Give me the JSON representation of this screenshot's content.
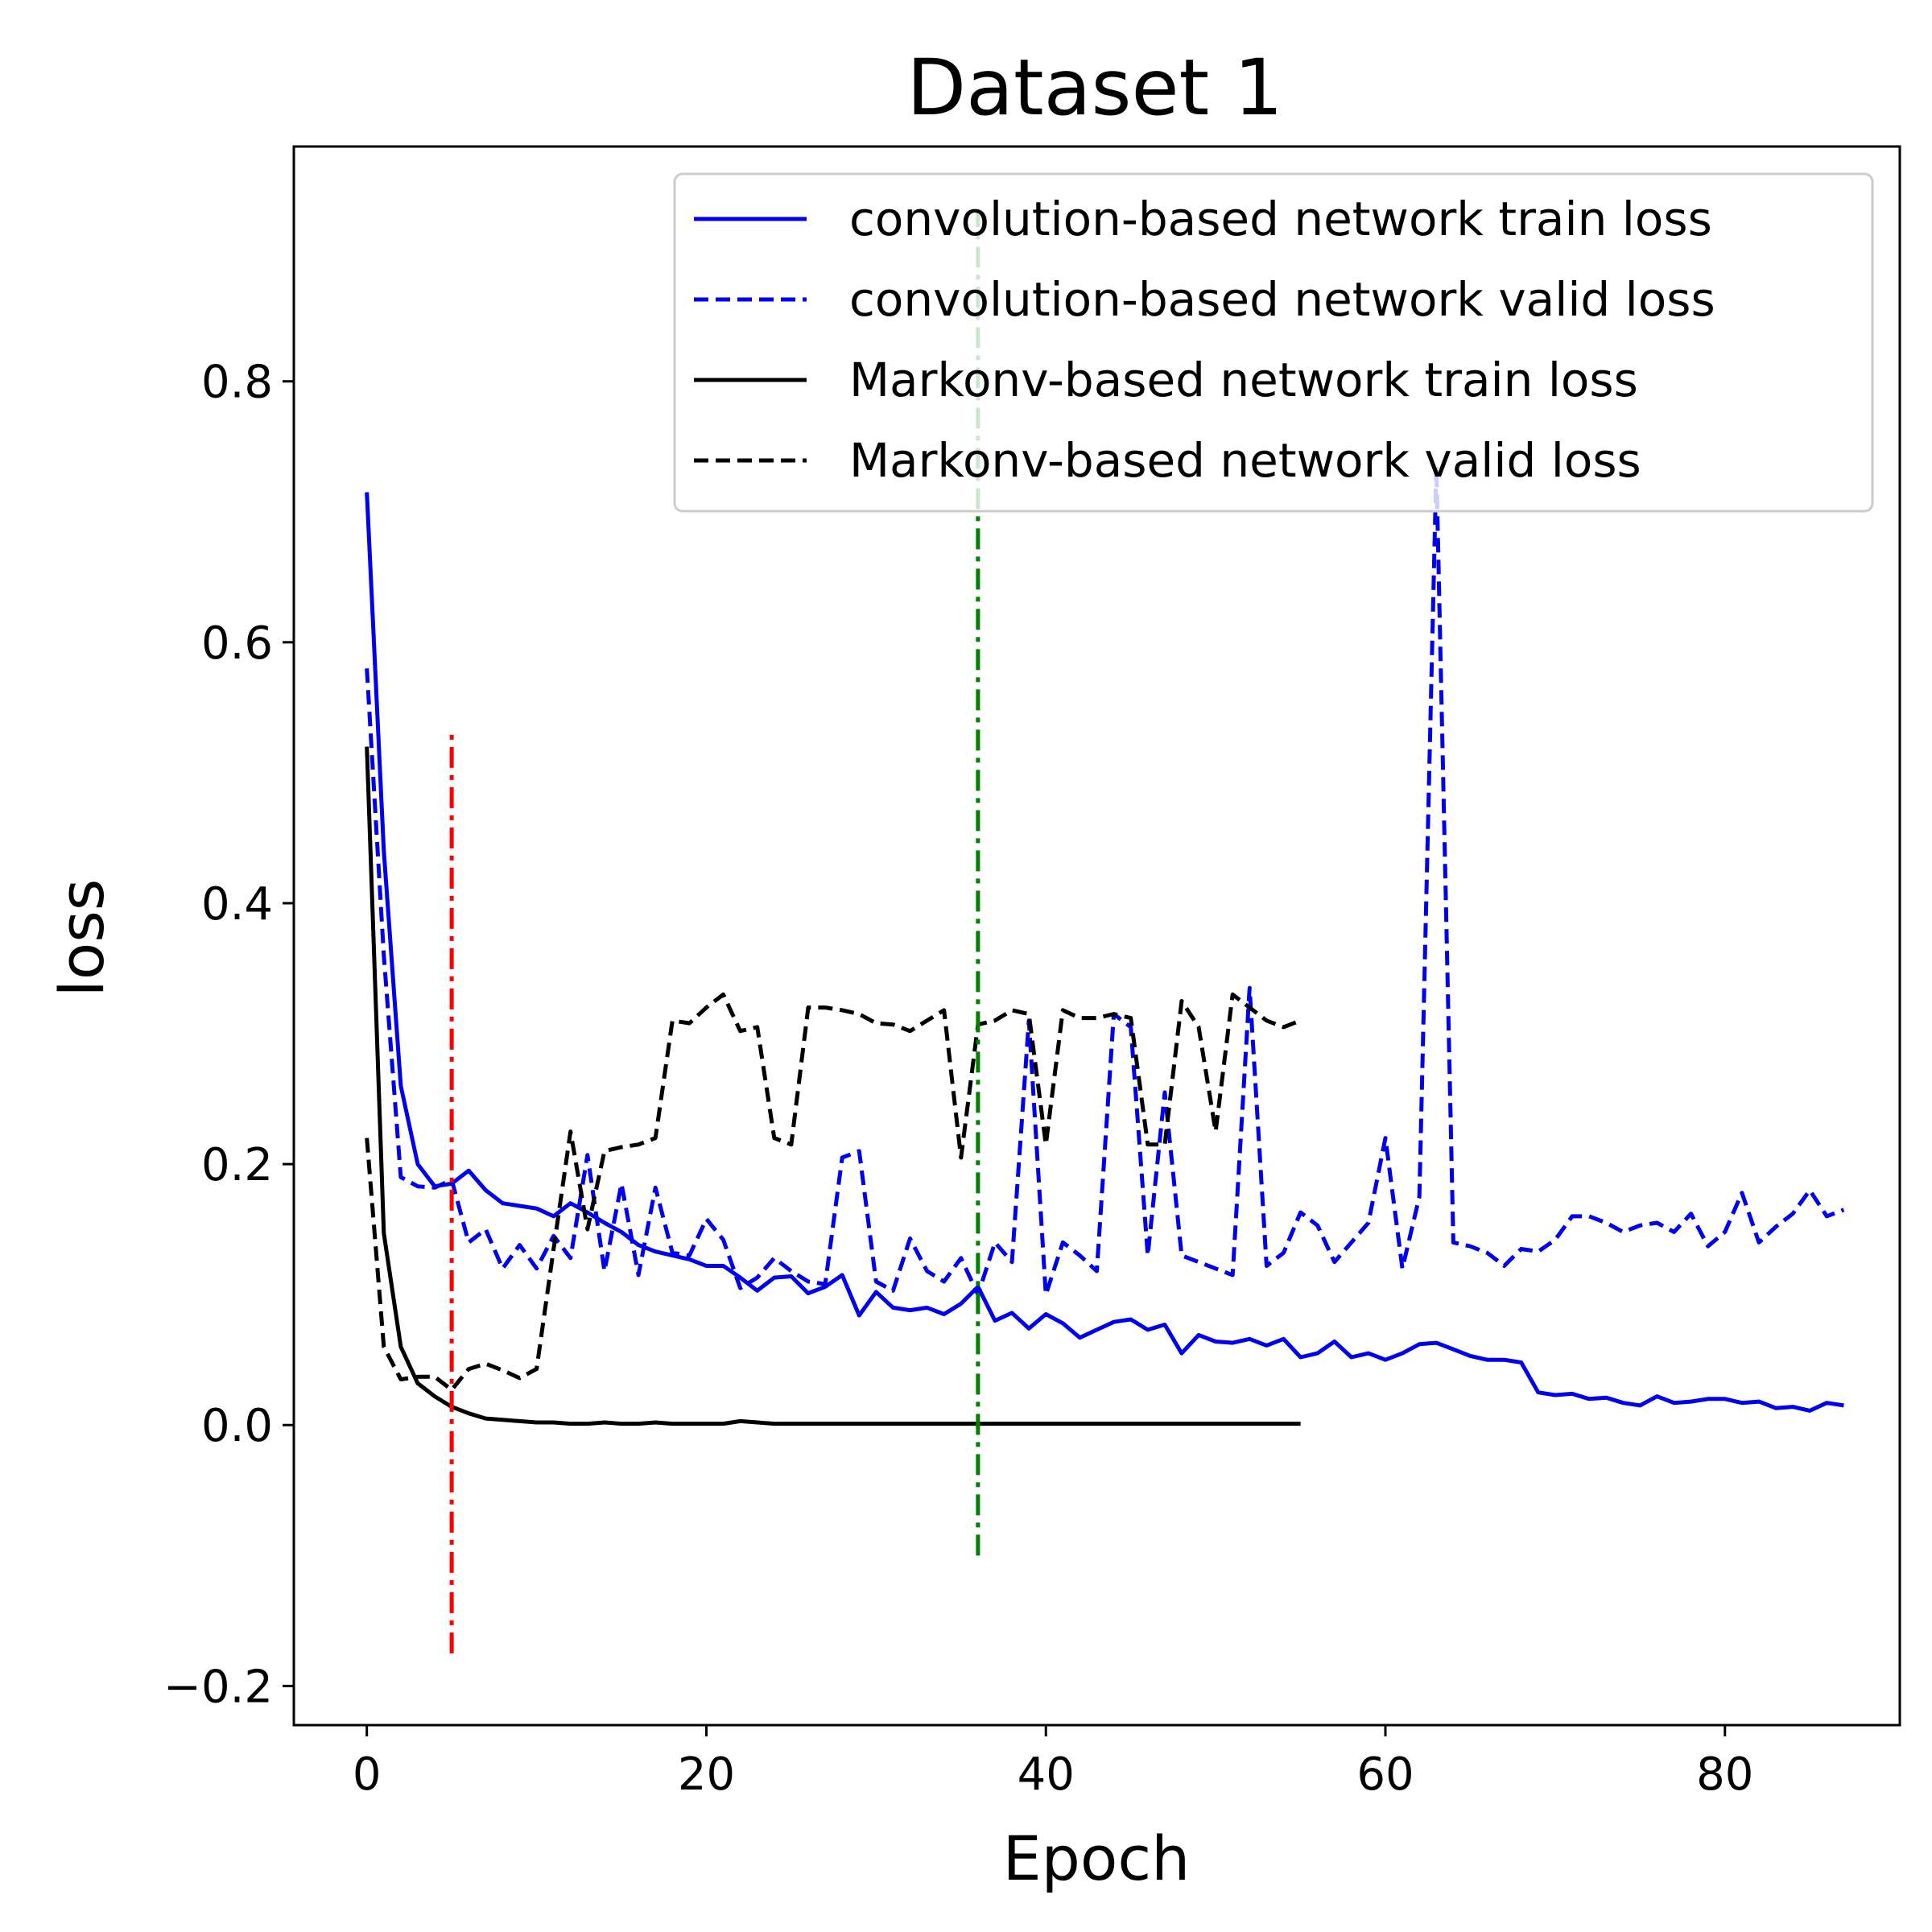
{
  "chart_data": {
    "type": "line",
    "title": "Dataset 1",
    "xlabel": "Epoch",
    "ylabel": "loss",
    "xlim": [
      -4.3,
      90.3
    ],
    "ylim": [
      -0.23,
      0.98
    ],
    "xticks": [
      0,
      20,
      40,
      60,
      80
    ],
    "yticks": [
      -0.2,
      0.0,
      0.2,
      0.4,
      0.6,
      0.8
    ],
    "ytick_labels": [
      "−0.2",
      "0.0",
      "0.2",
      "0.4",
      "0.6",
      "0.8"
    ],
    "grid": false,
    "legend_position": "top-right",
    "series": [
      {
        "name": "convolution-based network train loss",
        "color": "#0000ee",
        "style": "solid",
        "x_start": 0,
        "values": [
          0.715,
          0.44,
          0.26,
          0.2,
          0.183,
          0.185,
          0.195,
          0.18,
          0.17,
          0.168,
          0.166,
          0.16,
          0.17,
          0.163,
          0.155,
          0.148,
          0.138,
          0.133,
          0.13,
          0.127,
          0.122,
          0.122,
          0.113,
          0.103,
          0.113,
          0.114,
          0.101,
          0.106,
          0.115,
          0.084,
          0.102,
          0.09,
          0.088,
          0.09,
          0.085,
          0.093,
          0.106,
          0.08,
          0.086,
          0.074,
          0.085,
          0.078,
          0.067,
          0.073,
          0.079,
          0.081,
          0.073,
          0.077,
          0.055,
          0.069,
          0.064,
          0.063,
          0.066,
          0.061,
          0.066,
          0.052,
          0.055,
          0.064,
          0.052,
          0.055,
          0.05,
          0.055,
          0.062,
          0.063,
          0.058,
          0.053,
          0.05,
          0.05,
          0.048,
          0.025,
          0.023,
          0.024,
          0.02,
          0.021,
          0.017,
          0.015,
          0.022,
          0.017,
          0.018,
          0.02,
          0.02,
          0.017,
          0.018,
          0.013,
          0.014,
          0.011,
          0.017,
          0.015
        ]
      },
      {
        "name": "convolution-based network valid loss",
        "color": "#0000ee",
        "style": "dashed",
        "x_start": 0,
        "values": [
          0.58,
          0.36,
          0.19,
          0.183,
          0.182,
          0.188,
          0.14,
          0.15,
          0.12,
          0.138,
          0.12,
          0.145,
          0.128,
          0.207,
          0.118,
          0.185,
          0.115,
          0.182,
          0.132,
          0.13,
          0.158,
          0.142,
          0.105,
          0.113,
          0.128,
          0.118,
          0.11,
          0.108,
          0.205,
          0.21,
          0.11,
          0.103,
          0.143,
          0.118,
          0.11,
          0.128,
          0.1,
          0.14,
          0.125,
          0.31,
          0.1,
          0.14,
          0.13,
          0.118,
          0.315,
          0.305,
          0.13,
          0.255,
          0.13,
          0.125,
          0.12,
          0.115,
          0.335,
          0.122,
          0.132,
          0.163,
          0.153,
          0.125,
          0.14,
          0.155,
          0.22,
          0.12,
          0.175,
          0.735,
          0.14,
          0.137,
          0.132,
          0.122,
          0.135,
          0.133,
          0.142,
          0.16,
          0.16,
          0.155,
          0.148,
          0.153,
          0.155,
          0.148,
          0.162,
          0.137,
          0.148,
          0.178,
          0.14,
          0.152,
          0.162,
          0.18,
          0.16,
          0.165
        ]
      },
      {
        "name": "Markonv-based network train loss",
        "color": "#000000",
        "style": "solid",
        "x_start": 0,
        "values": [
          0.52,
          0.147,
          0.06,
          0.032,
          0.022,
          0.014,
          0.009,
          0.005,
          0.004,
          0.003,
          0.002,
          0.002,
          0.001,
          0.001,
          0.002,
          0.001,
          0.001,
          0.002,
          0.001,
          0.001,
          0.001,
          0.001,
          0.003,
          0.002,
          0.001,
          0.001,
          0.001,
          0.001,
          0.001,
          0.001,
          0.001,
          0.001,
          0.001,
          0.001,
          0.001,
          0.001,
          0.001,
          0.001,
          0.001,
          0.001,
          0.001,
          0.001,
          0.001,
          0.001,
          0.001,
          0.001,
          0.001,
          0.001,
          0.001,
          0.001,
          0.001,
          0.001,
          0.001,
          0.001,
          0.001,
          0.001
        ]
      },
      {
        "name": "Markonv-based network valid loss",
        "color": "#000000",
        "style": "dashed",
        "x_start": 0,
        "values": [
          0.22,
          0.06,
          0.035,
          0.037,
          0.037,
          0.027,
          0.043,
          0.047,
          0.042,
          0.036,
          0.043,
          0.135,
          0.225,
          0.15,
          0.21,
          0.213,
          0.215,
          0.22,
          0.31,
          0.308,
          0.32,
          0.33,
          0.302,
          0.305,
          0.22,
          0.215,
          0.32,
          0.32,
          0.318,
          0.315,
          0.308,
          0.307,
          0.302,
          0.31,
          0.318,
          0.205,
          0.307,
          0.31,
          0.318,
          0.315,
          0.215,
          0.318,
          0.312,
          0.312,
          0.315,
          0.312,
          0.215,
          0.215,
          0.325,
          0.305,
          0.225,
          0.33,
          0.32,
          0.31,
          0.305,
          0.31
        ]
      }
    ],
    "vertical_lines": [
      {
        "x": 5,
        "y_from": -0.175,
        "y_to": 0.53,
        "color": "#ff0000",
        "style": "dashdot"
      },
      {
        "x": 36,
        "y_from": -0.1,
        "y_to": 0.93,
        "color": "#008000",
        "style": "dashdot"
      }
    ]
  }
}
